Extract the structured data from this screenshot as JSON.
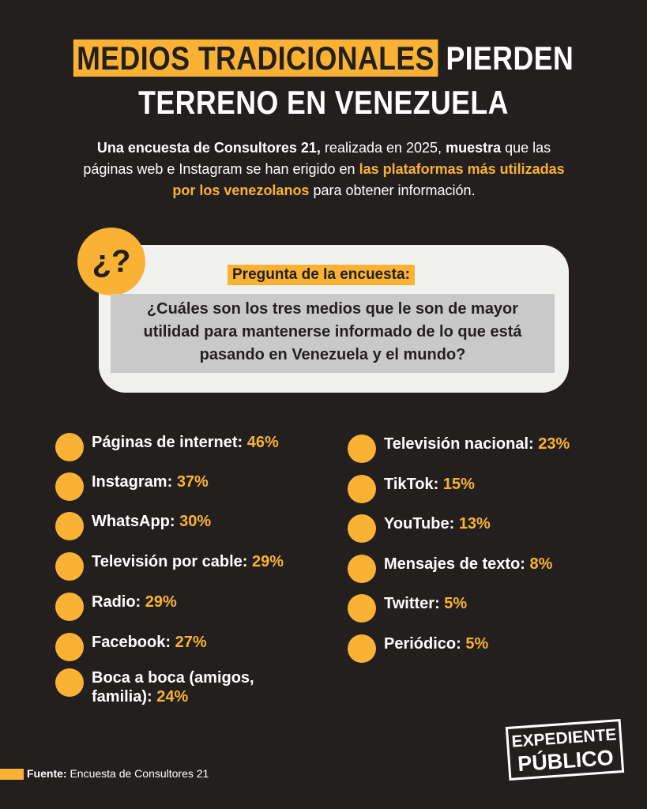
{
  "header": {
    "highlight": "MEDIOS TRADICIONALES",
    "rest": "PIERDEN",
    "line2": "TERRENO EN VENEZUELA"
  },
  "intro": {
    "part1": "Una encuesta de Consultores 21,",
    "part2": " realizada en 2025, ",
    "part3": "muestra",
    "part4": " que las páginas web e Instagram se han erigido en ",
    "part5": "las plataformas más utilizadas por los venezolanos",
    "part6": " para obtener información."
  },
  "question": {
    "badge": "¿?",
    "label": "Pregunta de la encuesta:",
    "text": "¿Cuáles son los tres medios que le son de mayor utilidad para mantenerse informado de lo que está pasando en Venezuela y el mundo?"
  },
  "items_left": [
    {
      "label": "Páginas de internet:",
      "value": "46%"
    },
    {
      "label": "Instagram:",
      "value": "37%"
    },
    {
      "label": "WhatsApp:",
      "value": "30%"
    },
    {
      "label": "Televisión por cable:",
      "value": "29%"
    },
    {
      "label": "Radio:",
      "value": "29%"
    },
    {
      "label": "Facebook:",
      "value": "27%"
    },
    {
      "label": "Boca a boca (amigos, familia):",
      "value": "24%"
    }
  ],
  "items_right": [
    {
      "label": "Televisión nacional:",
      "value": "23%"
    },
    {
      "label": "TikTok:",
      "value": "15%"
    },
    {
      "label": "YouTube:",
      "value": "13%"
    },
    {
      "label": "Mensajes de texto:",
      "value": "8%"
    },
    {
      "label": "Twitter:",
      "value": "5%"
    },
    {
      "label": "Periódico:",
      "value": "5%"
    }
  ],
  "footer": {
    "source_label": "Fuente:",
    "source": "Encuesta de Consultores 21",
    "logo_line1": "EXPEDIENTE",
    "logo_line2": "PÚBLICO"
  }
}
